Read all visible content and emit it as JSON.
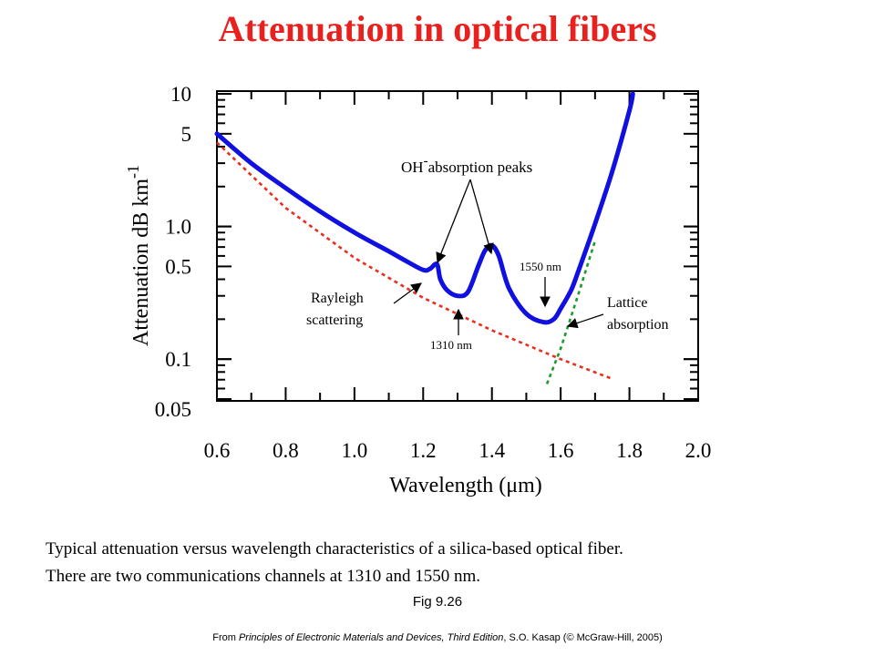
{
  "page": {
    "title": "Attenuation in optical fibers",
    "caption_line1": "Typical attenuation versus wavelength characteristics of a silica-based optical fiber.",
    "caption_line2": "There are two communications channels at 1310 and 1550 nm.",
    "fig_label": "Fig 9.26",
    "source_prefix": "From ",
    "source_book": "Principles of Electronic Materials and Devices, Third Edition",
    "source_suffix": ", S.O. Kasap (© McGraw-Hill,  2005)"
  },
  "chart_data": {
    "type": "line",
    "title": "",
    "xlabel": "Wavelength (μm)",
    "ylabel": "Attenuation dB km",
    "ylabel_superscript": "-1",
    "y_scale": "log",
    "xlim": [
      0.6,
      2.0
    ],
    "ylim": [
      0.05,
      10
    ],
    "x_ticks": [
      "0.6",
      "0.8",
      "1.0",
      "1.2",
      "1.4",
      "1.6",
      "1.8",
      "2.0"
    ],
    "x_tick_values": [
      0.6,
      0.8,
      1.0,
      1.2,
      1.4,
      1.6,
      1.8,
      2.0
    ],
    "y_ticks": [
      "0.05",
      "0.1",
      "0.5",
      "1.0",
      "5",
      "10"
    ],
    "y_tick_values": [
      0.05,
      0.1,
      0.5,
      1.0,
      5,
      10
    ],
    "grid": false,
    "series": [
      {
        "role": "measured",
        "color": "#1010e0",
        "style": "solid",
        "x": [
          0.6,
          0.7,
          0.8,
          0.9,
          1.0,
          1.1,
          1.15,
          1.2,
          1.22,
          1.24,
          1.25,
          1.27,
          1.3,
          1.33,
          1.36,
          1.38,
          1.4,
          1.42,
          1.45,
          1.5,
          1.55,
          1.58,
          1.6,
          1.63,
          1.65,
          1.7,
          1.75,
          1.8,
          1.81
        ],
        "y": [
          5.0,
          3.0,
          1.95,
          1.3,
          0.9,
          0.65,
          0.55,
          0.47,
          0.48,
          0.52,
          0.4,
          0.33,
          0.3,
          0.32,
          0.5,
          0.66,
          0.72,
          0.6,
          0.34,
          0.22,
          0.19,
          0.2,
          0.24,
          0.33,
          0.45,
          1.05,
          2.6,
          7.5,
          10.0
        ]
      },
      {
        "role": "rayleigh",
        "color": "#e8301c",
        "style": "dotted",
        "x": [
          0.6,
          0.8,
          1.0,
          1.2,
          1.4,
          1.6,
          1.75
        ],
        "y": [
          4.3,
          1.38,
          0.58,
          0.29,
          0.165,
          0.1,
          0.071
        ]
      },
      {
        "role": "lattice",
        "color": "#1f9a2c",
        "style": "dotted",
        "x": [
          1.56,
          1.6,
          1.65,
          1.7
        ],
        "y": [
          0.065,
          0.12,
          0.3,
          0.78
        ]
      }
    ],
    "annotations": {
      "oh_label": "OH",
      "oh_superscript": "-",
      "oh_text": "absorption peaks",
      "nm1550": "1550 nm",
      "nm1310": "1310 nm",
      "rayleigh_line1": "Rayleigh",
      "rayleigh_line2": "scattering",
      "lattice_line1": "Lattice",
      "lattice_line2": "absorption"
    }
  }
}
